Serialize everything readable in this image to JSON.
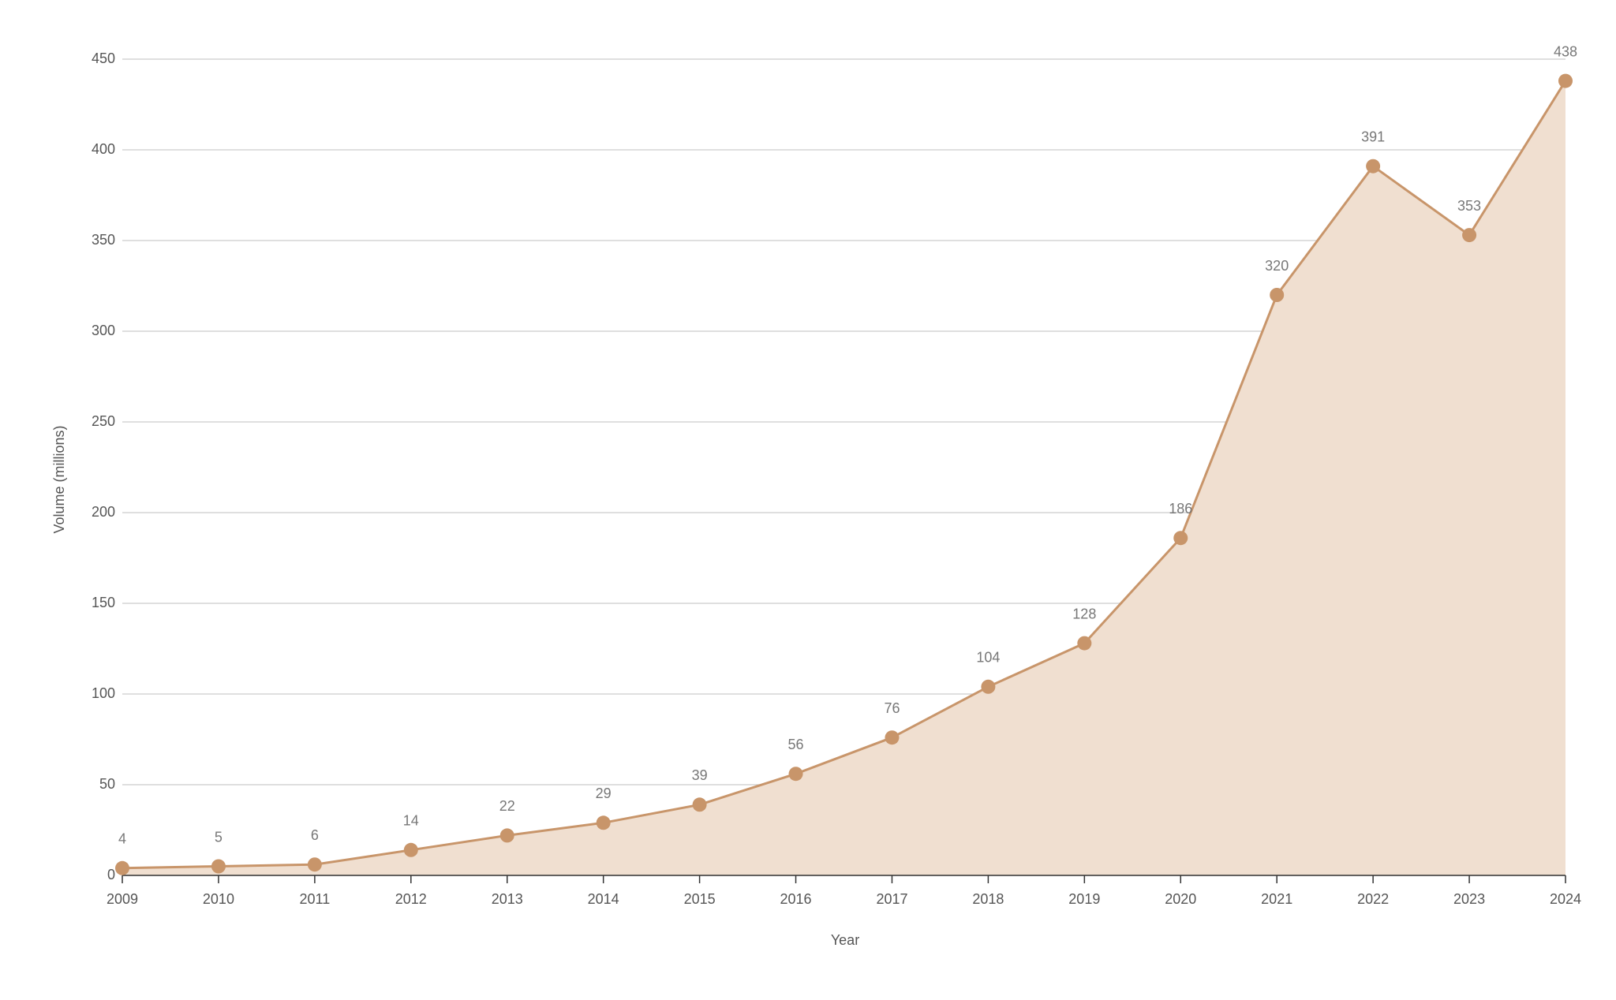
{
  "chart_data": {
    "type": "area",
    "x_label": "Year",
    "y_label": "Volume (millions)",
    "categories": [
      "2009",
      "2010",
      "2011",
      "2012",
      "2013",
      "2014",
      "2015",
      "2016",
      "2017",
      "2018",
      "2019",
      "2020",
      "2021",
      "2022",
      "2023",
      "2024"
    ],
    "values": [
      4,
      5,
      6,
      14,
      22,
      29,
      39,
      56,
      76,
      104,
      128,
      186,
      320,
      391,
      353,
      438
    ],
    "color": "#c8956a",
    "fill_color": "#f0dfd0",
    "ylim": [
      0,
      450
    ],
    "yticks": [
      0,
      50,
      100,
      150,
      200,
      250,
      300,
      350,
      400,
      450
    ],
    "grid": true
  }
}
